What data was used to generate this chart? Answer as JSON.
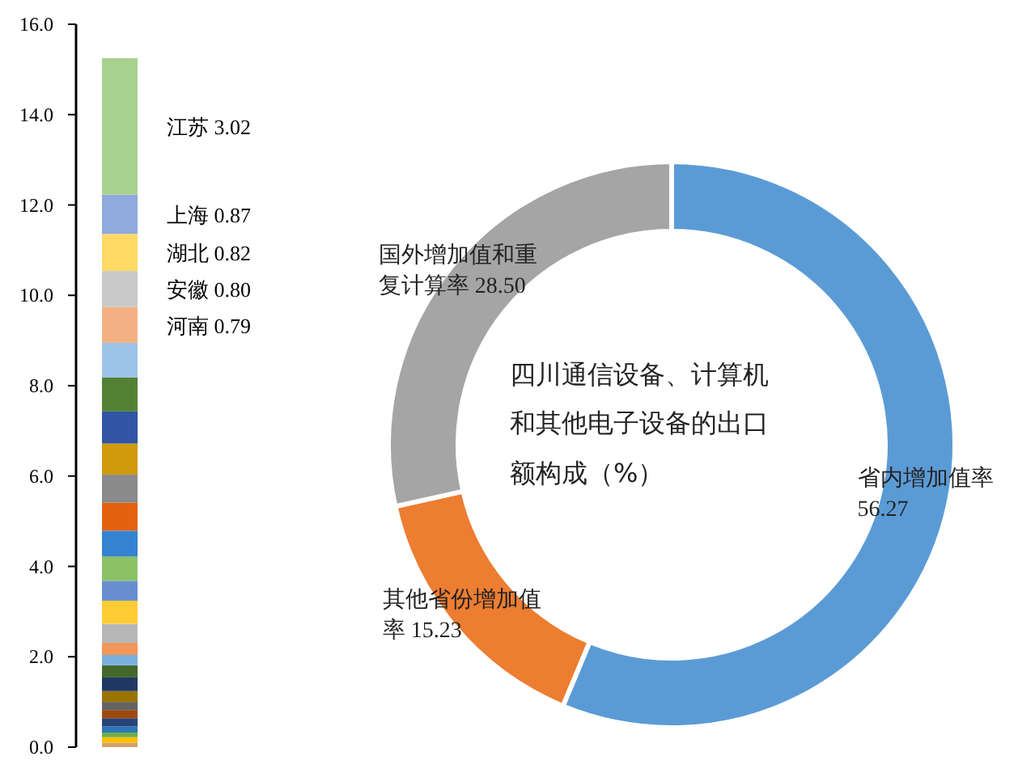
{
  "chart_data": [
    {
      "type": "bar",
      "stacked": true,
      "categories": [
        null
      ],
      "ylim": [
        0,
        16
      ],
      "yticks": [
        {
          "value": 0,
          "label": "0.0"
        },
        {
          "value": 2,
          "label": "2.0"
        },
        {
          "value": 4,
          "label": "4.0"
        },
        {
          "value": 6,
          "label": "6.0"
        },
        {
          "value": 8,
          "label": "8.0"
        },
        {
          "value": 10,
          "label": "10.0"
        },
        {
          "value": 12,
          "label": "12.0"
        },
        {
          "value": 14,
          "label": "14.0"
        },
        {
          "value": 16,
          "label": "16.0"
        }
      ],
      "tick_labels": "y",
      "series": [
        {
          "color": "#d4a36a",
          "values": [
            0.1
          ]
        },
        {
          "color": "#ffc000",
          "values": [
            0.12
          ]
        },
        {
          "color": "#70ad47",
          "values": [
            0.1
          ]
        },
        {
          "color": "#2e75b6",
          "values": [
            0.14
          ]
        },
        {
          "color": "#264478",
          "values": [
            0.18
          ]
        },
        {
          "color": "#9e480e",
          "values": [
            0.18
          ]
        },
        {
          "color": "#636363",
          "values": [
            0.18
          ]
        },
        {
          "color": "#997300",
          "values": [
            0.24
          ]
        },
        {
          "color": "#203864",
          "values": [
            0.3
          ]
        },
        {
          "color": "#43682b",
          "values": [
            0.27
          ]
        },
        {
          "color": "#7cafdd",
          "values": [
            0.23
          ]
        },
        {
          "color": "#f1975a",
          "values": [
            0.27
          ]
        },
        {
          "color": "#b7b7b7",
          "values": [
            0.42
          ]
        },
        {
          "color": "#ffcd33",
          "values": [
            0.51
          ]
        },
        {
          "color": "#698ed0",
          "values": [
            0.44
          ]
        },
        {
          "color": "#8cc168",
          "values": [
            0.54
          ]
        },
        {
          "color": "#3583d0",
          "values": [
            0.57
          ]
        },
        {
          "color": "#e2620f",
          "values": [
            0.62
          ]
        },
        {
          "color": "#8a8a8a",
          "values": [
            0.62
          ]
        },
        {
          "color": "#d09a0c",
          "values": [
            0.69
          ]
        },
        {
          "color": "#2f55a4",
          "values": [
            0.71
          ]
        },
        {
          "color": "#548235",
          "values": [
            0.75
          ]
        },
        {
          "color": "#9dc3e6",
          "values": [
            0.77
          ]
        },
        {
          "name": "河南",
          "color": "#f4b183",
          "values": [
            0.79
          ],
          "value_labels": [
            "0.79"
          ]
        },
        {
          "name": "安徽",
          "color": "#c9c9c9",
          "values": [
            0.8
          ],
          "value_labels": [
            "0.80"
          ]
        },
        {
          "name": "湖北",
          "color": "#ffd966",
          "values": [
            0.82
          ],
          "value_labels": [
            "0.82"
          ]
        },
        {
          "name": "上海",
          "color": "#8faadc",
          "values": [
            0.87
          ],
          "value_labels": [
            "0.87"
          ]
        },
        {
          "name": "江苏",
          "color": "#a9d18e",
          "values": [
            3.02
          ],
          "value_labels": [
            "3.02"
          ]
        }
      ]
    },
    {
      "type": "donut",
      "title": "四川通信设备、计算机和其他电子设备的出口额构成（%）",
      "categories": [
        "省内增加值率",
        "其他省份增加值率",
        "国外增加值和重复计算率"
      ],
      "values": [
        56.27,
        15.23,
        28.5
      ],
      "colors": [
        "#5b9bd5",
        "#ed7d31",
        "#a5a5a5"
      ],
      "value_labels": [
        "56.27",
        "15.23",
        "28.50"
      ]
    }
  ]
}
